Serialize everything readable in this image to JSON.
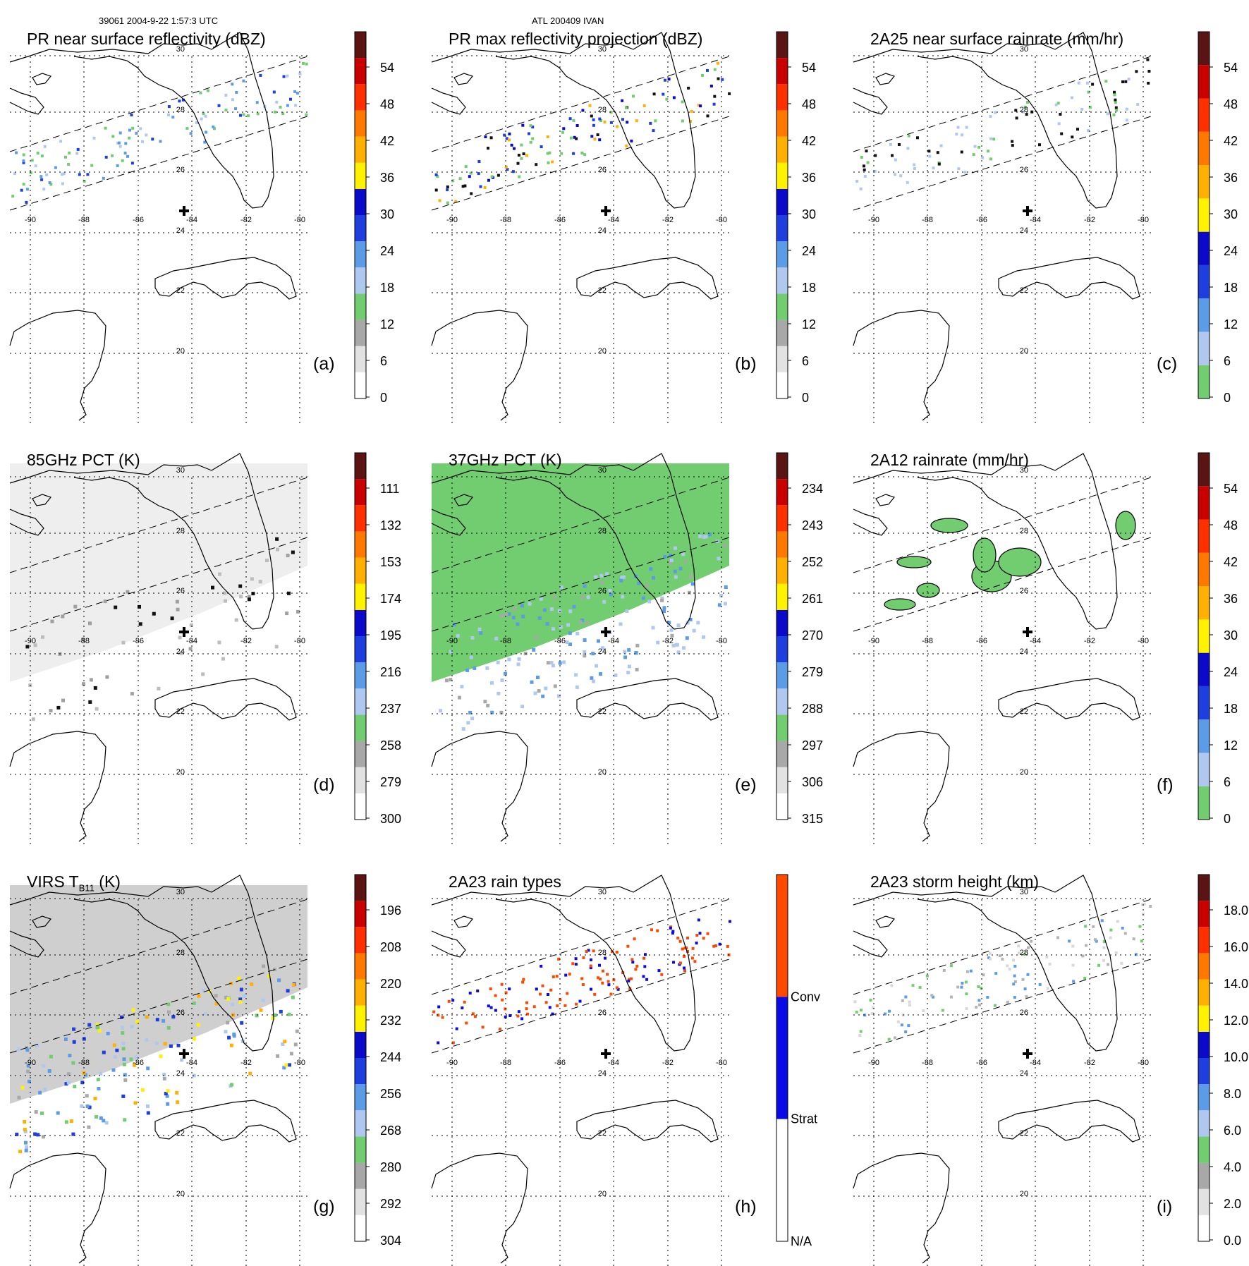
{
  "header": {
    "orbit_time": "39061 2004-9-22 1:57:3 UTC",
    "storm": "ATL 200409 IVAN"
  },
  "map": {
    "lon_labels": [
      "-90",
      "-88",
      "-86",
      "-84",
      "-82",
      "-80"
    ],
    "lat_labels": [
      "30",
      "28",
      "26",
      "24",
      "22",
      "20"
    ]
  },
  "chart_data": [
    {
      "id": "a",
      "type": "heatmap",
      "title": "PR near surface reflectivity (dBZ)",
      "label": "(a)",
      "colorbar_ticks": [
        "54",
        "48",
        "42",
        "36",
        "30",
        "24",
        "18",
        "12",
        "6",
        "0"
      ],
      "colorbar_range": [
        0,
        60
      ],
      "colorbar_colors": [
        "#ffffff",
        "#e2e2e2",
        "#a8a8a8",
        "#72cc70",
        "#b0c8f0",
        "#5c9ce6",
        "#1e3ede",
        "#0a0ac8",
        "#fff200",
        "#ffb000",
        "#ff7800",
        "#ff3000",
        "#c80000",
        "#5a1414"
      ],
      "grid": true
    },
    {
      "id": "b",
      "type": "heatmap",
      "title": "PR max reflectivity projection (dBZ)",
      "label": "(b)",
      "colorbar_ticks": [
        "54",
        "48",
        "42",
        "36",
        "30",
        "24",
        "18",
        "12",
        "6",
        "0"
      ],
      "colorbar_range": [
        0,
        60
      ],
      "colorbar_colors": [
        "#ffffff",
        "#e2e2e2",
        "#a8a8a8",
        "#72cc70",
        "#b0c8f0",
        "#5c9ce6",
        "#1e3ede",
        "#0a0ac8",
        "#fff200",
        "#ffb000",
        "#ff7800",
        "#ff3000",
        "#c80000",
        "#5a1414"
      ],
      "grid": true
    },
    {
      "id": "c",
      "type": "heatmap",
      "title": "2A25 near surface rainrate (mm/hr)",
      "label": "(c)",
      "colorbar_ticks": [
        "54",
        "48",
        "42",
        "36",
        "30",
        "24",
        "18",
        "12",
        "6",
        "0"
      ],
      "colorbar_range": [
        0,
        60
      ],
      "colorbar_colors": [
        "#72cc70",
        "#b0c8f0",
        "#5c9ce6",
        "#1e3ede",
        "#0a0ac8",
        "#fff200",
        "#ffb000",
        "#ff7800",
        "#ff3000",
        "#c80000",
        "#5a1414"
      ],
      "grid": true
    },
    {
      "id": "d",
      "type": "heatmap",
      "title": "85GHz PCT (K)",
      "label": "(d)",
      "colorbar_ticks": [
        "111",
        "132",
        "153",
        "174",
        "195",
        "216",
        "237",
        "258",
        "279",
        "300"
      ],
      "colorbar_range": [
        300,
        90
      ],
      "colorbar_colors": [
        "#ffffff",
        "#e2e2e2",
        "#a8a8a8",
        "#72cc70",
        "#b0c8f0",
        "#5c9ce6",
        "#1e3ede",
        "#0a0ac8",
        "#fff200",
        "#ffb000",
        "#ff7800",
        "#ff3000",
        "#c80000",
        "#5a1414"
      ],
      "grid": true
    },
    {
      "id": "e",
      "type": "heatmap",
      "title": "37GHz PCT (K)",
      "label": "(e)",
      "colorbar_ticks": [
        "234",
        "243",
        "252",
        "261",
        "270",
        "279",
        "288",
        "297",
        "306",
        "315"
      ],
      "colorbar_range": [
        315,
        225
      ],
      "colorbar_colors": [
        "#ffffff",
        "#e2e2e2",
        "#a8a8a8",
        "#72cc70",
        "#b0c8f0",
        "#5c9ce6",
        "#1e3ede",
        "#0a0ac8",
        "#fff200",
        "#ffb000",
        "#ff7800",
        "#ff3000",
        "#c80000",
        "#5a1414"
      ],
      "grid": true
    },
    {
      "id": "f",
      "type": "heatmap",
      "title": "2A12 rainrate (mm/hr)",
      "label": "(f)",
      "colorbar_ticks": [
        "54",
        "48",
        "42",
        "36",
        "30",
        "24",
        "18",
        "12",
        "6",
        "0"
      ],
      "colorbar_range": [
        0,
        60
      ],
      "colorbar_colors": [
        "#72cc70",
        "#b0c8f0",
        "#5c9ce6",
        "#1e3ede",
        "#0a0ac8",
        "#fff200",
        "#ffb000",
        "#ff7800",
        "#ff3000",
        "#c80000",
        "#5a1414"
      ],
      "grid": true
    },
    {
      "id": "g",
      "type": "heatmap",
      "title": "VIRS T",
      "title_sub": "B11",
      "title_suffix": " (K)",
      "label": "(g)",
      "colorbar_ticks": [
        "196",
        "208",
        "220",
        "232",
        "244",
        "256",
        "268",
        "280",
        "292",
        "304"
      ],
      "colorbar_range": [
        304,
        184
      ],
      "colorbar_colors": [
        "#ffffff",
        "#e2e2e2",
        "#a8a8a8",
        "#72cc70",
        "#b0c8f0",
        "#5c9ce6",
        "#1e3ede",
        "#0a0ac8",
        "#fff200",
        "#ffb000",
        "#ff7800",
        "#ff3000",
        "#c80000",
        "#5a1414"
      ],
      "grid": true
    },
    {
      "id": "h",
      "type": "heatmap",
      "title": "2A23 rain types",
      "label": "(h)",
      "categories": [
        "N/A",
        "Strat",
        "Conv"
      ],
      "category_colors": [
        "#ffffff",
        "#0a0ae6",
        "#ff4800"
      ],
      "grid": true
    },
    {
      "id": "i",
      "type": "heatmap",
      "title": "2A23 storm height (km)",
      "label": "(i)",
      "colorbar_ticks": [
        "18.0",
        "16.0",
        "14.0",
        "12.0",
        "10.0",
        "8.0",
        "6.0",
        "4.0",
        "2.0",
        "0.0"
      ],
      "colorbar_range": [
        0,
        20
      ],
      "colorbar_colors": [
        "#ffffff",
        "#e2e2e2",
        "#a8a8a8",
        "#72cc70",
        "#b0c8f0",
        "#5c9ce6",
        "#1e3ede",
        "#0a0ac8",
        "#fff200",
        "#ffb000",
        "#ff7800",
        "#ff3000",
        "#c80000",
        "#5a1414"
      ],
      "grid": true
    }
  ]
}
